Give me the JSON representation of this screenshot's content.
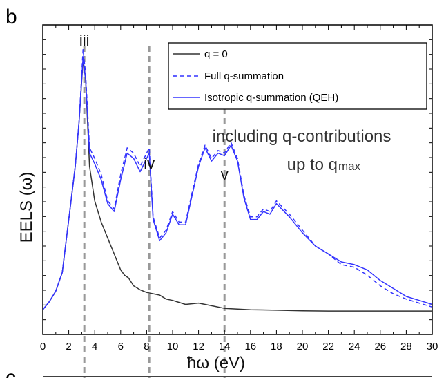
{
  "panel_label": "b",
  "next_panel_label": "c",
  "chart_data": {
    "type": "line",
    "title": "",
    "xlabel": "ħω (eV)",
    "ylabel": "EELS (ω)",
    "xlim": [
      0,
      30
    ],
    "ylim": [
      0,
      1
    ],
    "xticks": [
      0,
      2,
      4,
      6,
      8,
      10,
      12,
      14,
      16,
      18,
      20,
      22,
      24,
      26,
      28,
      30
    ],
    "xtick_labels": [
      "0",
      "2",
      "4",
      "6",
      "8",
      "10",
      "12",
      "14",
      "16",
      "18",
      "20",
      "22",
      "24",
      "26",
      "28",
      "30"
    ],
    "y_tick_labels_shown": false,
    "grid": false,
    "legend_position": "top-right",
    "annotation": [
      "including q-contributions",
      "up to q",
      "max"
    ],
    "peaks": [
      {
        "label": "iii",
        "x": 3.2
      },
      {
        "label": "iv",
        "x": 8.2
      },
      {
        "label": "v",
        "x": 14.0
      }
    ],
    "series": [
      {
        "name": "q = 0",
        "color": "#333333",
        "style": "solid",
        "x": [
          0,
          0.5,
          1,
          1.5,
          2,
          2.5,
          2.8,
          3.1,
          3.3,
          3.6,
          4,
          4.5,
          5,
          5.5,
          6,
          6.3,
          6.6,
          7,
          7.5,
          8,
          8.5,
          9,
          9.5,
          10,
          11,
          12,
          13,
          14,
          16,
          18,
          20,
          22,
          24,
          26,
          28,
          30
        ],
        "y": [
          0.01,
          0.04,
          0.08,
          0.15,
          0.35,
          0.55,
          0.72,
          0.95,
          0.88,
          0.55,
          0.42,
          0.34,
          0.28,
          0.22,
          0.16,
          0.14,
          0.13,
          0.1,
          0.085,
          0.075,
          0.07,
          0.065,
          0.05,
          0.045,
          0.03,
          0.035,
          0.025,
          0.015,
          0.01,
          0.008,
          0.006,
          0.005,
          0.005,
          0.005,
          0.005,
          0.005
        ]
      },
      {
        "name": "Full q-summation",
        "color": "#3333ff",
        "style": "dashed",
        "x": [
          0,
          0.5,
          1,
          1.5,
          2,
          2.5,
          2.8,
          3.1,
          3.3,
          3.6,
          4,
          4.5,
          5,
          5.5,
          6,
          6.5,
          7,
          7.5,
          7.8,
          8.2,
          8.5,
          9,
          9.5,
          10,
          10.5,
          11,
          11.5,
          12,
          12.5,
          13,
          13.5,
          14,
          14.5,
          15,
          15.5,
          16,
          16.5,
          17,
          17.5,
          18,
          19,
          20,
          21,
          22,
          23,
          24,
          25,
          26,
          27,
          28,
          29,
          30
        ],
        "y": [
          0.01,
          0.04,
          0.08,
          0.15,
          0.35,
          0.55,
          0.72,
          0.99,
          0.9,
          0.62,
          0.58,
          0.52,
          0.42,
          0.39,
          0.52,
          0.62,
          0.6,
          0.55,
          0.58,
          0.62,
          0.36,
          0.28,
          0.31,
          0.38,
          0.34,
          0.34,
          0.45,
          0.56,
          0.63,
          0.58,
          0.61,
          0.6,
          0.64,
          0.58,
          0.44,
          0.36,
          0.36,
          0.39,
          0.38,
          0.42,
          0.37,
          0.31,
          0.25,
          0.22,
          0.18,
          0.17,
          0.14,
          0.1,
          0.07,
          0.05,
          0.035,
          0.02
        ]
      },
      {
        "name": "Isotropic q-summation (QEH)",
        "color": "#3333ff",
        "style": "solid",
        "x": [
          0,
          0.5,
          1,
          1.5,
          2,
          2.5,
          2.8,
          3.1,
          3.3,
          3.6,
          4,
          4.5,
          5,
          5.5,
          6,
          6.5,
          7,
          7.5,
          7.8,
          8.2,
          8.5,
          9,
          9.5,
          10,
          10.5,
          11,
          11.5,
          12,
          12.5,
          13,
          13.5,
          14,
          14.5,
          15,
          15.5,
          16,
          16.5,
          17,
          17.5,
          18,
          19,
          20,
          21,
          22,
          23,
          24,
          25,
          26,
          27,
          28,
          29,
          30
        ],
        "y": [
          0.01,
          0.04,
          0.08,
          0.15,
          0.35,
          0.55,
          0.72,
          0.96,
          0.88,
          0.6,
          0.56,
          0.5,
          0.41,
          0.38,
          0.5,
          0.6,
          0.58,
          0.53,
          0.56,
          0.6,
          0.35,
          0.27,
          0.3,
          0.37,
          0.33,
          0.33,
          0.44,
          0.55,
          0.62,
          0.57,
          0.6,
          0.59,
          0.63,
          0.57,
          0.43,
          0.35,
          0.35,
          0.38,
          0.37,
          0.41,
          0.36,
          0.3,
          0.25,
          0.22,
          0.19,
          0.18,
          0.16,
          0.12,
          0.09,
          0.06,
          0.045,
          0.03
        ]
      }
    ]
  }
}
